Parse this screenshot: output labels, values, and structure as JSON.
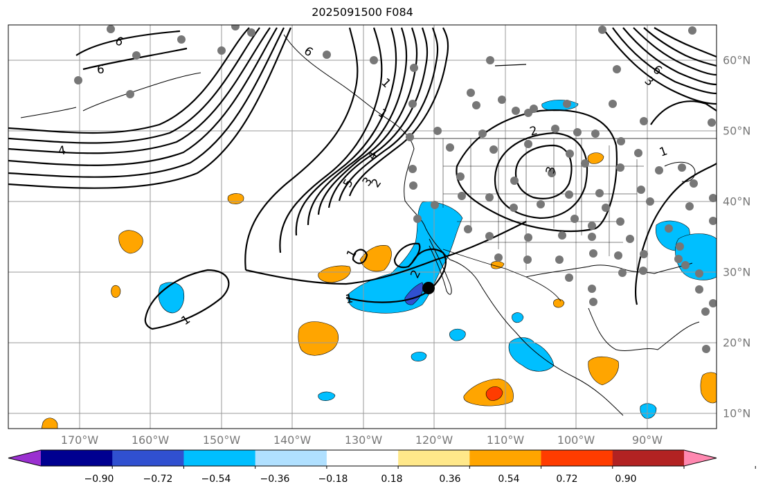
{
  "title": "2025091500 F084",
  "map": {
    "lon_labels": [
      "170°W",
      "160°W",
      "150°W",
      "140°W",
      "130°W",
      "120°W",
      "110°W",
      "100°W",
      "90°W"
    ],
    "lat_labels": [
      "60°N",
      "50°N",
      "40°N",
      "30°N",
      "20°N",
      "10°N"
    ],
    "contour_labels": [
      "6",
      "6",
      "6",
      "4",
      "5",
      "4",
      "3",
      "2",
      "1",
      "2",
      "3",
      "1",
      "1",
      "2",
      "1",
      "1",
      "6",
      "3",
      "1"
    ],
    "marker": "filled black circle"
  },
  "colorbar": {
    "ticks": [
      "−0.90",
      "−0.72",
      "−0.54",
      "−0.36",
      "−0.18",
      "0.18",
      "0.36",
      "0.54",
      "0.72",
      "0.90"
    ],
    "colors": [
      "#9a30d0",
      "#000090",
      "#3050d0",
      "#00bfff",
      "#b0e0ff",
      "#ffffff",
      "#ffe88a",
      "#ffa500",
      "#ff3c00",
      "#b22222",
      "#ff88b0"
    ]
  }
}
